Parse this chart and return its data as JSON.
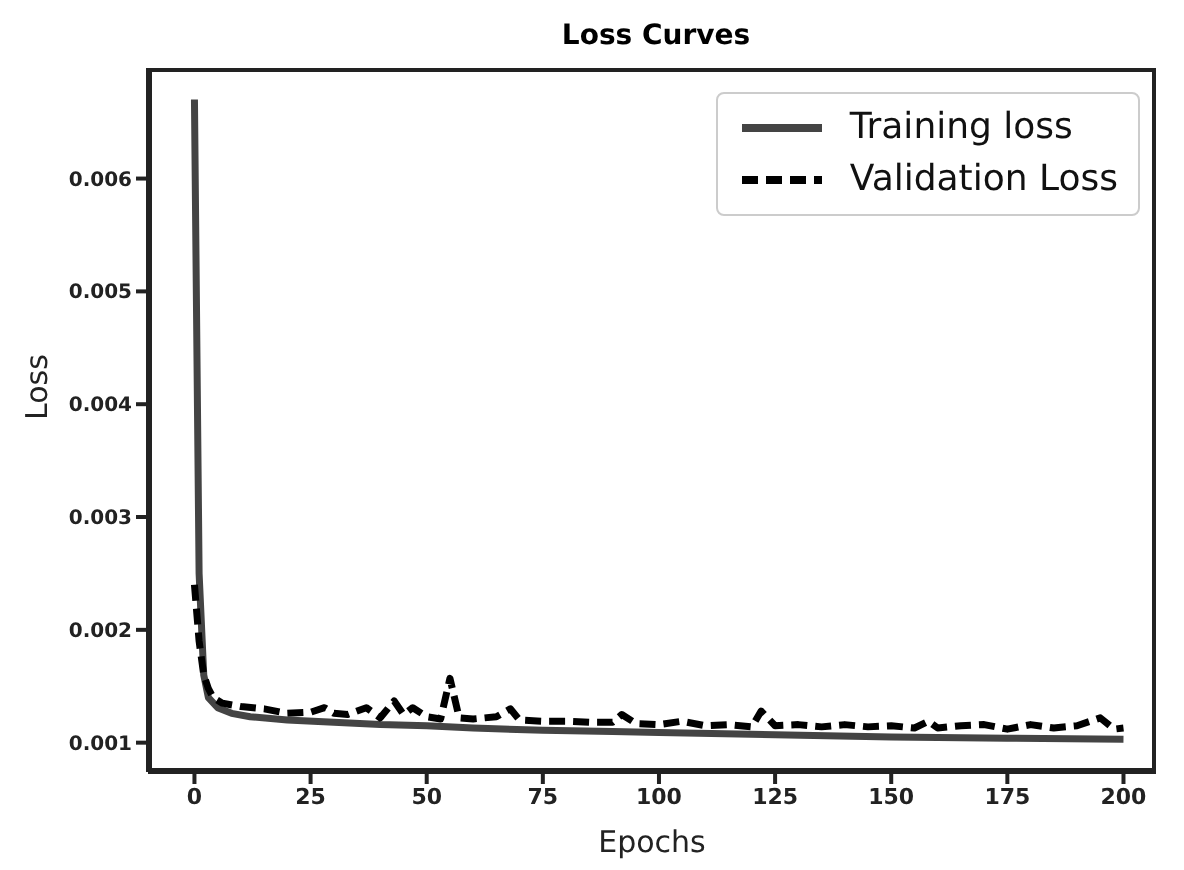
{
  "chart_data": {
    "type": "line",
    "title": "Loss Curves",
    "xlabel": "Epochs",
    "ylabel": "Loss",
    "xlim": [
      -10,
      207
    ],
    "ylim": [
      0.00074,
      0.00698
    ],
    "xticks": [
      0,
      25,
      50,
      75,
      100,
      125,
      150,
      175,
      200
    ],
    "yticks": [
      0.001,
      0.002,
      0.003,
      0.004,
      0.005,
      0.006
    ],
    "legend": "top right",
    "marker": "none",
    "series": [
      {
        "name": "Training loss",
        "color": "#444444",
        "line_style": "solid",
        "x": [
          0,
          1,
          2,
          3,
          5,
          8,
          12,
          20,
          30,
          40,
          50,
          60,
          75,
          90,
          100,
          125,
          150,
          175,
          200
        ],
        "values": [
          0.0067,
          0.0025,
          0.0016,
          0.0014,
          0.00131,
          0.00126,
          0.00123,
          0.0012,
          0.00118,
          0.00116,
          0.00115,
          0.00113,
          0.00111,
          0.0011,
          0.00109,
          0.00107,
          0.00105,
          0.00104,
          0.00103
        ]
      },
      {
        "name": "Validation Loss",
        "color": "#000000",
        "line_style": "dashed",
        "x": [
          0,
          1,
          2,
          3,
          4,
          6,
          10,
          15,
          20,
          25,
          28,
          30,
          33,
          37,
          40,
          43,
          45,
          47,
          50,
          53,
          55,
          57,
          60,
          65,
          68,
          70,
          75,
          80,
          85,
          90,
          92,
          95,
          100,
          105,
          110,
          115,
          120,
          122,
          125,
          130,
          135,
          140,
          145,
          150,
          155,
          158,
          160,
          165,
          170,
          175,
          180,
          185,
          190,
          195,
          198,
          200
        ],
        "values": [
          0.0024,
          0.0019,
          0.0016,
          0.00148,
          0.0014,
          0.00135,
          0.00132,
          0.0013,
          0.00126,
          0.00127,
          0.00131,
          0.00126,
          0.00125,
          0.00131,
          0.00122,
          0.00137,
          0.00125,
          0.00131,
          0.00123,
          0.00121,
          0.00157,
          0.00122,
          0.00121,
          0.00123,
          0.0013,
          0.0012,
          0.00119,
          0.00119,
          0.00118,
          0.00118,
          0.00125,
          0.00117,
          0.00116,
          0.00119,
          0.00115,
          0.00116,
          0.00114,
          0.00128,
          0.00115,
          0.00116,
          0.00114,
          0.00116,
          0.00114,
          0.00115,
          0.00113,
          0.00119,
          0.00113,
          0.00115,
          0.00116,
          0.00112,
          0.00116,
          0.00113,
          0.00115,
          0.00122,
          0.00112,
          0.00113
        ]
      }
    ]
  }
}
